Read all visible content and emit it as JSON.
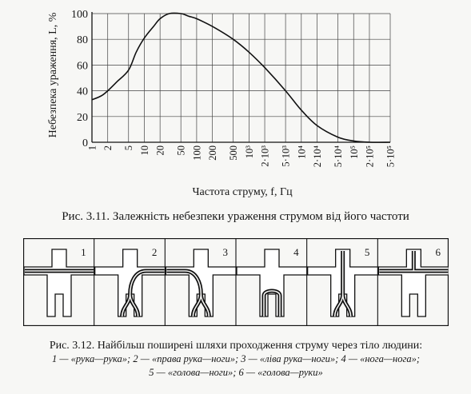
{
  "figure1": {
    "caption": "Рис. 3.11. Залежність небезпеки ураження струмом від його частоти",
    "chart_data": {
      "type": "line",
      "xlabel": "Частота струму, f, Гц",
      "ylabel": "Небезпека ураження, L, %",
      "x_scale": "log",
      "xlim": [
        1,
        500000
      ],
      "ylim": [
        0,
        100
      ],
      "y_ticks": [
        "0",
        "20",
        "40",
        "60",
        "80",
        "100"
      ],
      "x_ticks": [
        "1",
        "2",
        "5",
        "10",
        "20",
        "50",
        "100",
        "200",
        "500",
        "10³",
        "2·10³",
        "5·10³",
        "10⁴",
        "2·10⁴",
        "5·10⁴",
        "10⁵",
        "2·10⁵",
        "5·10⁵"
      ],
      "x_tick_values": [
        1,
        2,
        5,
        10,
        20,
        50,
        100,
        200,
        500,
        1000,
        2000,
        5000,
        10000,
        20000,
        50000,
        100000,
        200000,
        500000
      ],
      "grid": true,
      "series": [
        {
          "x": [
            1,
            1.5,
            2,
            3,
            5,
            7,
            10,
            15,
            20,
            30,
            50,
            70,
            100,
            200,
            500,
            1000,
            2000,
            5000,
            10000,
            20000,
            50000,
            100000,
            200000,
            500000
          ],
          "y": [
            33,
            36,
            40,
            47,
            56,
            70,
            81,
            90,
            96,
            100,
            100,
            98,
            96,
            90,
            80,
            70,
            58,
            40,
            25,
            13,
            4,
            1,
            0,
            0
          ]
        }
      ]
    }
  },
  "figure2": {
    "panels": [
      {
        "number": "1",
        "path": "рука—рука"
      },
      {
        "number": "2",
        "path": "права рука—ноги"
      },
      {
        "number": "3",
        "path": "ліва рука—ноги"
      },
      {
        "number": "4",
        "path": "нога—нога"
      },
      {
        "number": "5",
        "path": "голова—ноги"
      },
      {
        "number": "6",
        "path": "голова—руки"
      }
    ],
    "caption": {
      "line1": "Рис. 3.12. Найбільш поширені шляхи проходження струму через тіло людини:",
      "line2": "1 — «рука—рука»; 2 — «права рука—ноги»; 3 — «ліва рука—ноги»; 4 — «нога—нога»;",
      "line3": "5 — «голова—ноги»; 6 — «голова—руки»"
    }
  }
}
